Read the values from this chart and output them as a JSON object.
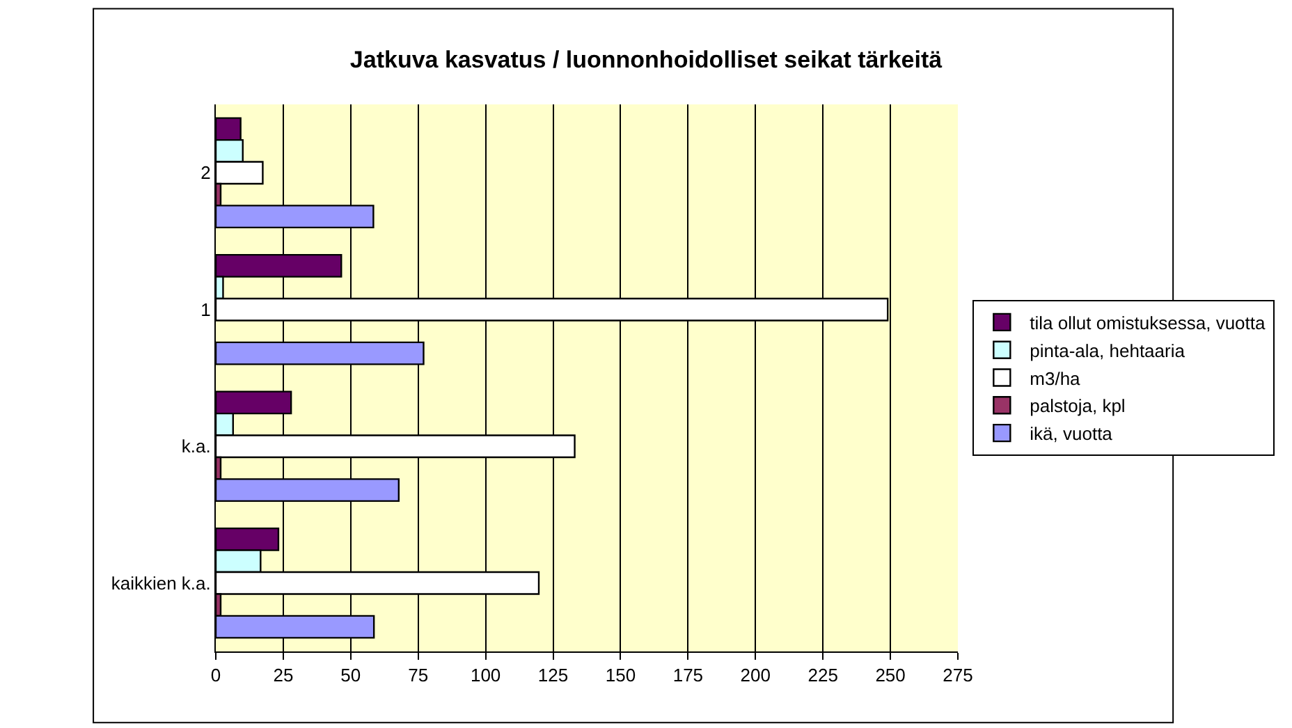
{
  "chart_data": {
    "type": "bar",
    "orientation": "horizontal",
    "title": "Jatkuva kasvatus / luonnonhoidolliset seikat tärkeitä",
    "categories": [
      "2",
      "1",
      "k.a.",
      "kaikkien k.a."
    ],
    "series": [
      {
        "name": "tila ollut omistuksessa, vuotta",
        "color": "#660066",
        "values": [
          9.2,
          46.5,
          27.9,
          23.2
        ]
      },
      {
        "name": "pinta-ala, hehtaaria",
        "color": "#ccffff",
        "values": [
          10,
          2.7,
          6.4,
          16.6
        ]
      },
      {
        "name": "m3/ha",
        "color": "#ffffff",
        "values": [
          17.4,
          249,
          133,
          119.7
        ]
      },
      {
        "name": "palstoja, kpl",
        "color": "#993366",
        "values": [
          1.8,
          null,
          1.8,
          1.8
        ]
      },
      {
        "name": "ikä, vuotta",
        "color": "#9999ff",
        "values": [
          58.4,
          77,
          67.8,
          58.6
        ]
      }
    ],
    "xlim": [
      0,
      275
    ],
    "xticks": [
      0,
      25,
      50,
      75,
      100,
      125,
      150,
      175,
      200,
      225,
      250,
      275
    ],
    "grid": "x",
    "legend": "right"
  }
}
